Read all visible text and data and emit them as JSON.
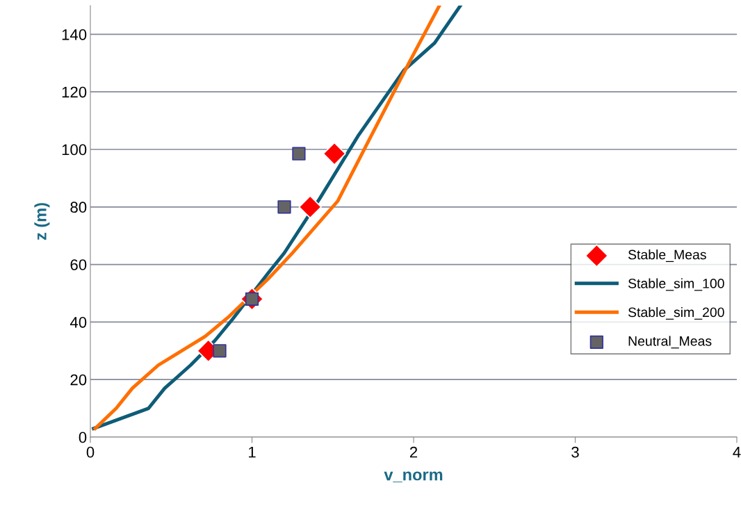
{
  "chart_data": {
    "type": "line",
    "xlabel": "v_norm",
    "ylabel": "z (m)",
    "xlim": [
      0,
      4
    ],
    "xticks": [
      0,
      1,
      2,
      3,
      4
    ],
    "ylim": [
      0,
      150
    ],
    "yticks": [
      0,
      20,
      40,
      60,
      80,
      100,
      120,
      140
    ],
    "grid": "y",
    "legend": "right",
    "series": [
      {
        "name": "Stable_Meas",
        "type": "scatter",
        "marker": "diamond",
        "color": "#ff0000",
        "x": [
          0.73,
          1.0,
          1.36,
          1.51
        ],
        "values": [
          30,
          48,
          80,
          98.5
        ]
      },
      {
        "name": "Stable_sim_100",
        "marker": "none",
        "color": "#0e5c78",
        "x": [
          0.02,
          0.36,
          0.46,
          0.62,
          0.77,
          0.88,
          1.1,
          1.2,
          1.42,
          1.66,
          1.94,
          2.13,
          2.29
        ],
        "values": [
          3,
          10,
          17,
          25,
          33.5,
          41,
          57,
          64,
          83,
          105,
          127.5,
          137,
          150
        ]
      },
      {
        "name": "Stable_sim_200",
        "marker": "none",
        "color": "#ff6f00",
        "x": [
          0.03,
          0.16,
          0.26,
          0.42,
          0.71,
          0.86,
          1.1,
          1.25,
          1.53,
          1.74,
          1.98,
          2.16
        ],
        "values": [
          3,
          10,
          17,
          25,
          35,
          42,
          55,
          64,
          82,
          105,
          131,
          150
        ]
      },
      {
        "name": "Neutral_Meas",
        "type": "scatter",
        "marker": "square",
        "color": "#646464",
        "x": [
          0.8,
          1.0,
          1.2,
          1.29
        ],
        "values": [
          30,
          48,
          80,
          98.5
        ]
      }
    ]
  }
}
